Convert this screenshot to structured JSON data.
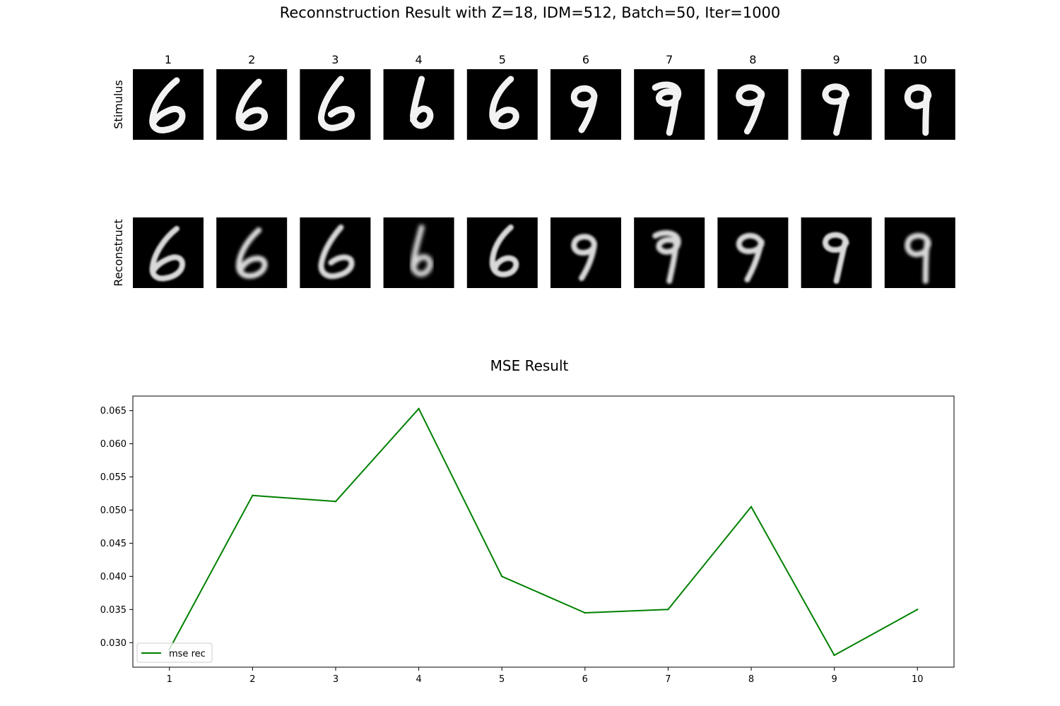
{
  "figure": {
    "title": "Reconnstruction Result with Z=18, IDM=512, Batch=50, Iter=1000",
    "column_labels": [
      "1",
      "2",
      "3",
      "4",
      "5",
      "6",
      "7",
      "8",
      "9",
      "10"
    ],
    "row_labels": [
      "Stimulus",
      "Reconstruct"
    ],
    "stimulus_digits": [
      "6",
      "6",
      "6",
      "6",
      "6",
      "9",
      "9",
      "9",
      "9",
      "9"
    ],
    "reconstruct_digits": [
      "6",
      "6",
      "6",
      "6",
      "6",
      "9",
      "9",
      "9",
      "9",
      "9"
    ]
  },
  "chart_data": {
    "type": "line",
    "title": "MSE Result",
    "xlabel": "",
    "ylabel": "",
    "x": [
      1,
      2,
      3,
      4,
      5,
      6,
      7,
      8,
      9,
      10
    ],
    "xticks": [
      "1",
      "2",
      "3",
      "4",
      "5",
      "6",
      "7",
      "8",
      "9",
      "10"
    ],
    "yticks": [
      "0.030",
      "0.035",
      "0.040",
      "0.045",
      "0.050",
      "0.055",
      "0.060",
      "0.065"
    ],
    "ylim": [
      0.0263,
      0.0672
    ],
    "xlim": [
      0.56,
      10.44
    ],
    "grid": false,
    "legend_position": "lower left",
    "series": [
      {
        "name": "mse rec",
        "color": "#008000",
        "values": [
          0.029,
          0.0522,
          0.0513,
          0.0653,
          0.04,
          0.0345,
          0.035,
          0.0505,
          0.0281,
          0.035
        ]
      }
    ]
  }
}
